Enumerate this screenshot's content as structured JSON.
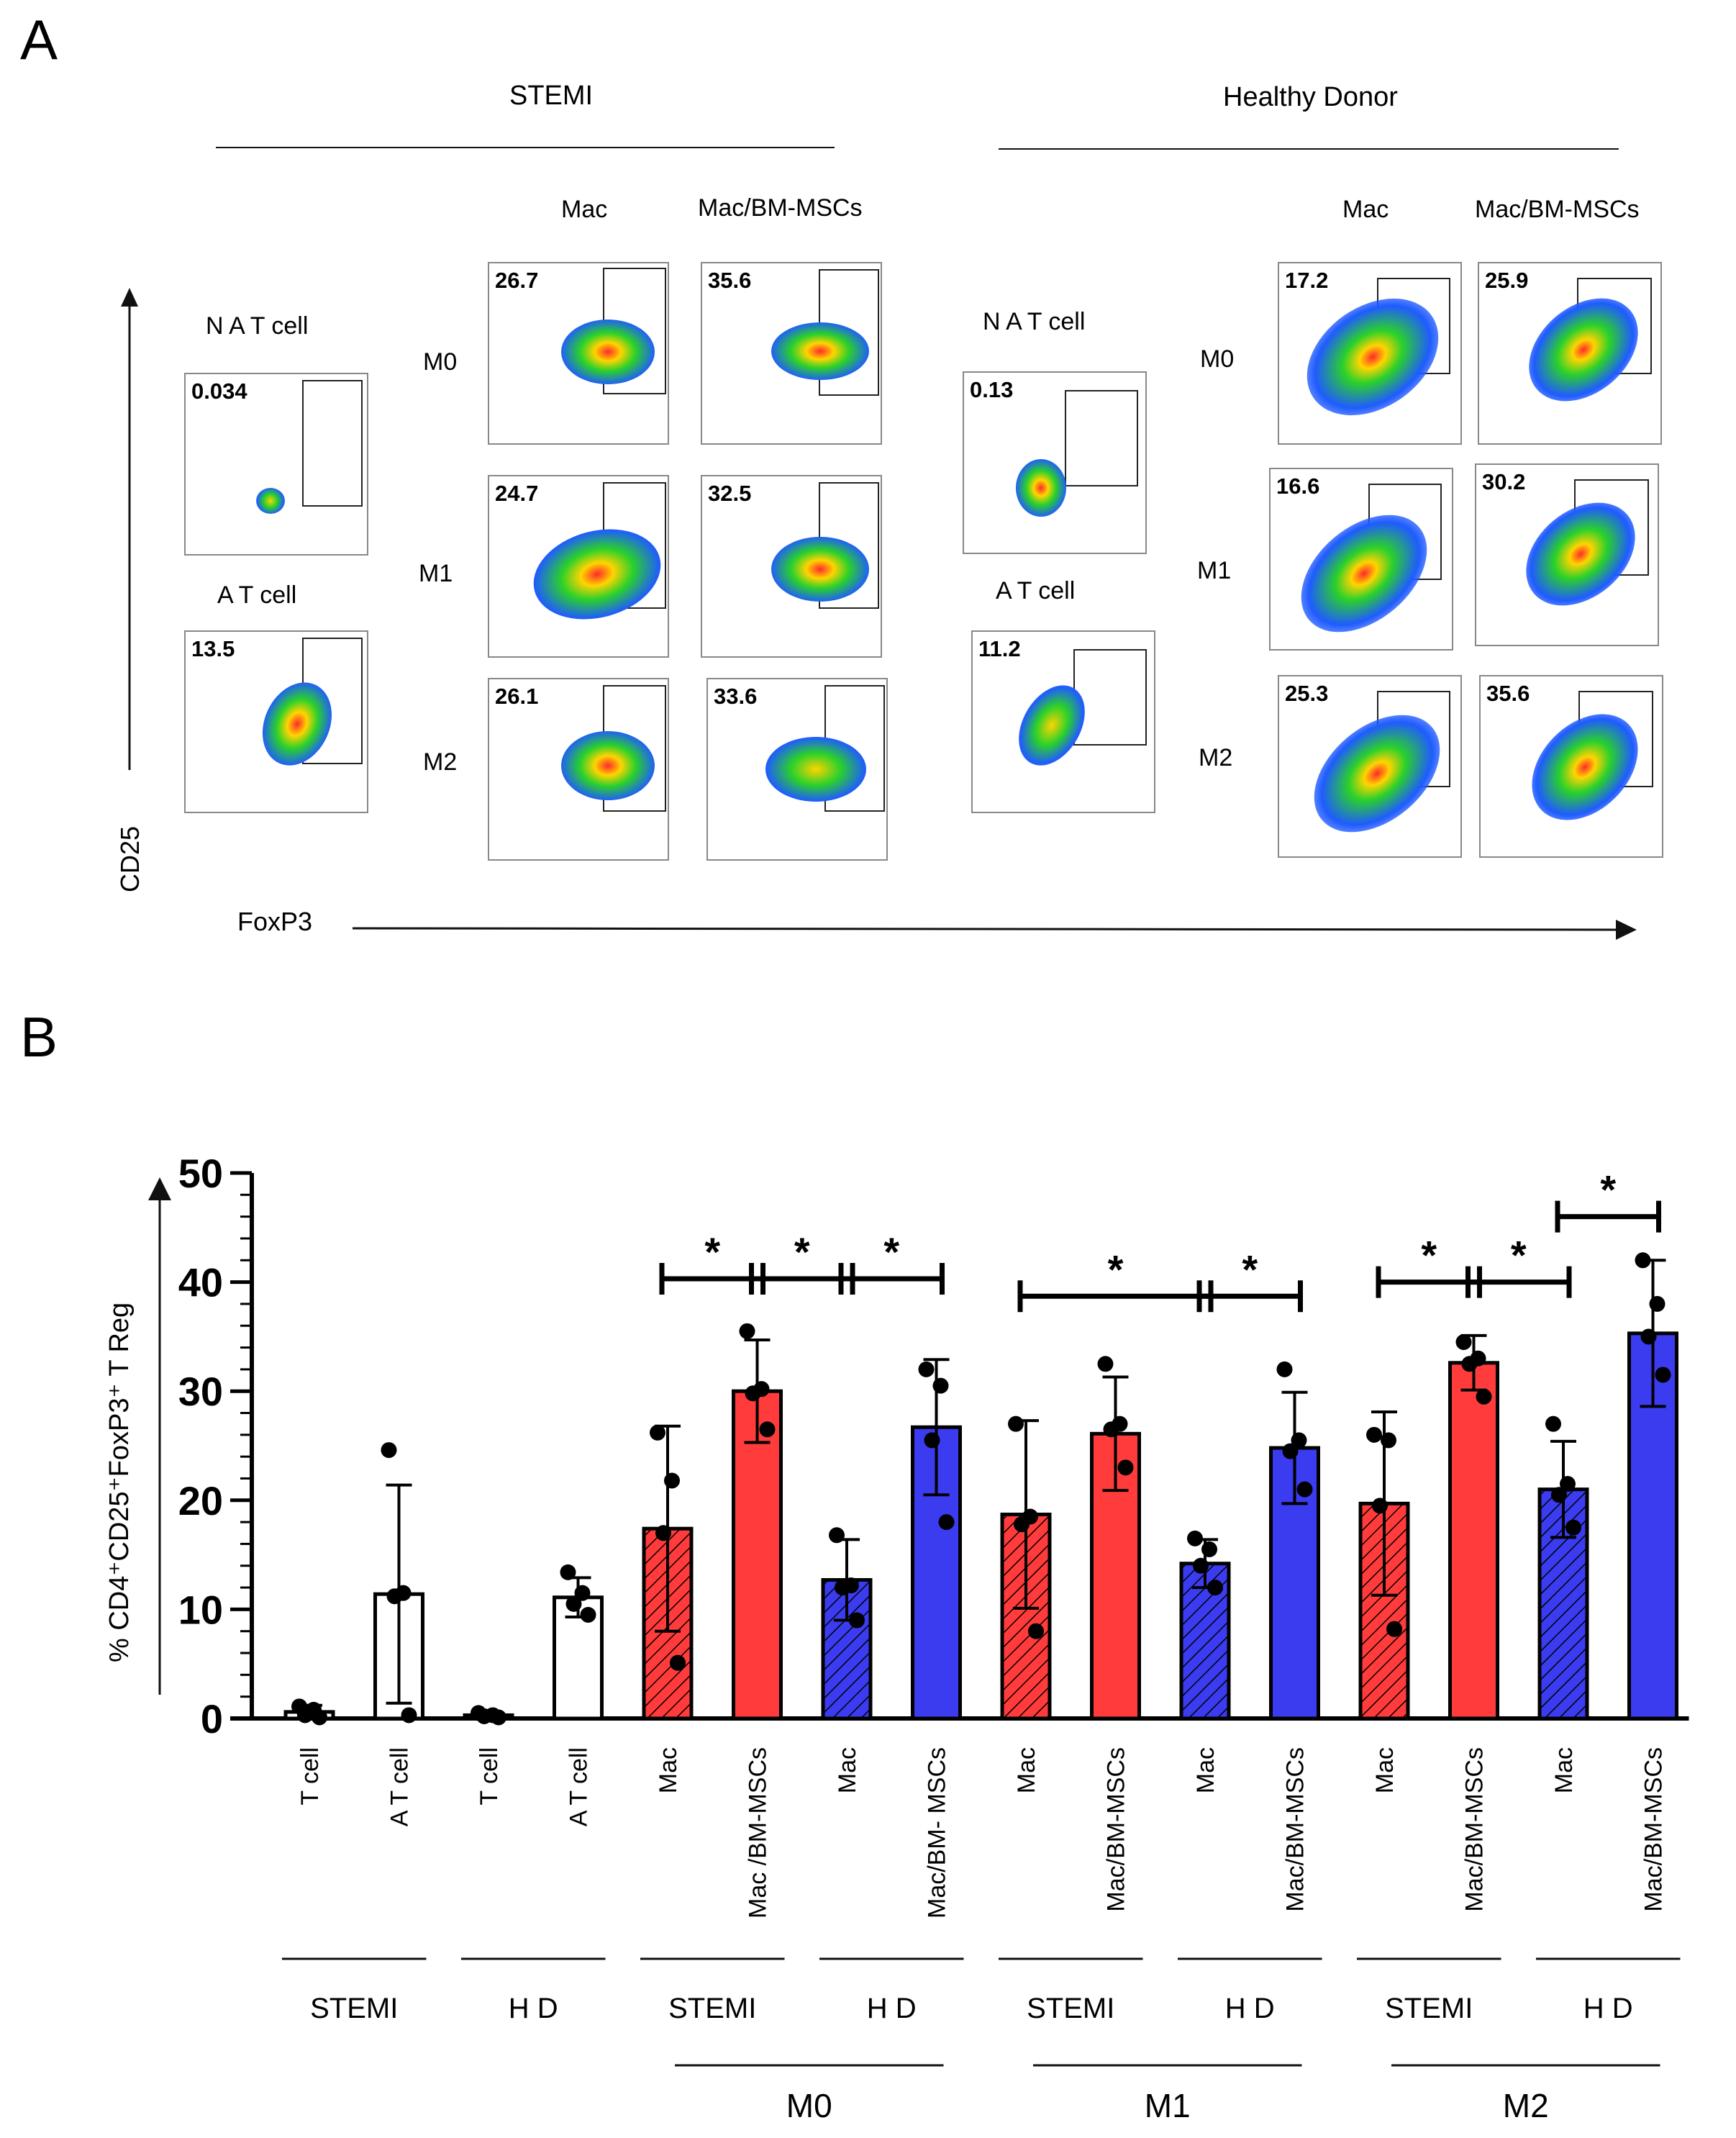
{
  "panelA": {
    "letter": "A",
    "groups": [
      {
        "title": "STEMI",
        "mac_label": "Mac",
        "msc_label": "Mac/BM-MSCs",
        "nat_label": "N A T cell",
        "at_label": "A T cell",
        "nat_pct": "0.034",
        "at_pct": "13.5",
        "rows": [
          {
            "label": "M0",
            "mac": "26.7",
            "msc": "35.6"
          },
          {
            "label": "M1",
            "mac": "24.7",
            "msc": "32.5"
          },
          {
            "label": "M2",
            "mac": "26.1",
            "msc": "33.6"
          }
        ]
      },
      {
        "title": "Healthy  Donor",
        "mac_label": "Mac",
        "msc_label": "Mac/BM-MSCs",
        "nat_label": "N A T cell",
        "at_label": "A T cell",
        "nat_pct": "0.13",
        "at_pct": "11.2",
        "rows": [
          {
            "label": "M0",
            "mac": "17.2",
            "msc": "25.9"
          },
          {
            "label": "M1",
            "mac": "16.6",
            "msc": "30.2"
          },
          {
            "label": "M2",
            "mac": "25.3",
            "msc": "35.6"
          }
        ]
      }
    ],
    "y_axis": "CD25",
    "x_axis": "FoxP3"
  },
  "panelB": {
    "letter": "B"
  },
  "chart_data": {
    "type": "bar",
    "ylabel": "% CD4⁺CD25⁺FoxP3⁺  T Reg",
    "ylim": [
      0,
      50
    ],
    "yticks": [
      "0",
      "10",
      "20",
      "30",
      "40",
      "50"
    ],
    "categories": [
      "T cell",
      "A T cell",
      "T cell",
      "A T cell",
      "Mac",
      "Mac /BM-MSCs",
      "Mac",
      "Mac/BM- MSCs",
      "Mac",
      "Mac/BM-MSCs",
      "Mac",
      "Mac/BM-MSCs",
      "Mac",
      "Mac/BM-MSCs",
      "Mac",
      "Mac/BM-MSCs"
    ],
    "bars": [
      {
        "value": 0.6,
        "sd": 0.6,
        "style": "outline",
        "points": [
          1.1,
          0.8,
          0.3,
          0.1
        ]
      },
      {
        "value": 11.4,
        "sd": 10.0,
        "style": "outline",
        "points": [
          24.6,
          11.5,
          11.2,
          0.3
        ]
      },
      {
        "value": 0.3,
        "sd": 0.2,
        "style": "outline",
        "points": [
          0.5,
          0.3,
          0.2,
          0.1
        ]
      },
      {
        "value": 11.1,
        "sd": 1.8,
        "style": "outline",
        "points": [
          13.4,
          11.5,
          10.5,
          9.5
        ]
      },
      {
        "value": 17.4,
        "sd": 9.4,
        "style": "red-hatch",
        "points": [
          26.2,
          21.8,
          17.0,
          5.1
        ]
      },
      {
        "value": 30.0,
        "sd": 4.7,
        "style": "red",
        "points": [
          35.5,
          30.2,
          29.8,
          26.5
        ]
      },
      {
        "value": 12.7,
        "sd": 3.7,
        "style": "blue-hatch",
        "points": [
          16.8,
          12.2,
          12.0,
          9.0
        ]
      },
      {
        "value": 26.7,
        "sd": 6.2,
        "style": "blue",
        "points": [
          32.0,
          30.5,
          25.5,
          18.0
        ]
      },
      {
        "value": 18.7,
        "sd": 8.6,
        "style": "red-hatch",
        "points": [
          27.0,
          18.5,
          17.8,
          8.0
        ]
      },
      {
        "value": 26.1,
        "sd": 5.2,
        "style": "red",
        "points": [
          32.5,
          27.0,
          26.5,
          23.0
        ]
      },
      {
        "value": 14.2,
        "sd": 2.2,
        "style": "blue-hatch",
        "points": [
          16.5,
          15.5,
          14.0,
          12.0
        ]
      },
      {
        "value": 24.8,
        "sd": 5.1,
        "style": "blue",
        "points": [
          32.0,
          25.5,
          24.5,
          21.0
        ]
      },
      {
        "value": 19.7,
        "sd": 8.4,
        "style": "red-hatch",
        "points": [
          26.0,
          25.5,
          19.5,
          8.2
        ]
      },
      {
        "value": 32.6,
        "sd": 2.5,
        "style": "red",
        "points": [
          34.5,
          33.0,
          32.5,
          29.5
        ]
      },
      {
        "value": 21.0,
        "sd": 4.4,
        "style": "blue-hatch",
        "points": [
          27.0,
          21.5,
          20.5,
          17.5
        ]
      },
      {
        "value": 35.3,
        "sd": 6.7,
        "style": "blue",
        "points": [
          42.0,
          38.0,
          35.0,
          31.5
        ]
      }
    ],
    "significance": [
      {
        "from": 4,
        "to": 5,
        "y": 40.3,
        "label": "*"
      },
      {
        "from": 5,
        "to": 6,
        "y": 40.3,
        "label": "*"
      },
      {
        "from": 6,
        "to": 7,
        "y": 40.3,
        "label": "*"
      },
      {
        "from": 8,
        "to": 10,
        "y": 38.7,
        "label": "*"
      },
      {
        "from": 10,
        "to": 11,
        "y": 38.7,
        "label": "*"
      },
      {
        "from": 12,
        "to": 13,
        "y": 40.0,
        "label": "*"
      },
      {
        "from": 13,
        "to": 14,
        "y": 40.0,
        "label": "*"
      },
      {
        "from": 14,
        "to": 15,
        "y": 46.0,
        "label": "*"
      }
    ],
    "source_groups": [
      {
        "label": "STEMI",
        "from": 0,
        "to": 1
      },
      {
        "label": "H D",
        "from": 2,
        "to": 3
      },
      {
        "label": "STEMI",
        "from": 4,
        "to": 5
      },
      {
        "label": "H D",
        "from": 6,
        "to": 7
      },
      {
        "label": "STEMI",
        "from": 8,
        "to": 9
      },
      {
        "label": "H D",
        "from": 10,
        "to": 11
      },
      {
        "label": "STEMI",
        "from": 12,
        "to": 13
      },
      {
        "label": "H D",
        "from": 14,
        "to": 15
      }
    ],
    "polarization_groups": [
      {
        "label": "M0",
        "from": 4,
        "to": 7
      },
      {
        "label": "M1",
        "from": 8,
        "to": 11
      },
      {
        "label": "M2",
        "from": 12,
        "to": 15
      }
    ],
    "colors": {
      "red": "#ff3b3b",
      "blue": "#3b3bf0",
      "outline": "#000000"
    }
  }
}
